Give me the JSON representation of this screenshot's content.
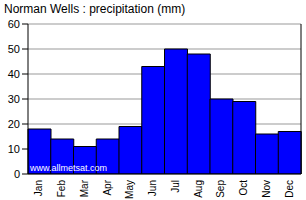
{
  "chart_data": {
    "type": "bar",
    "title": "Norman Wells : precipitation (mm)",
    "categories": [
      "Jan",
      "Feb",
      "Mar",
      "Apr",
      "May",
      "Jun",
      "Jul",
      "Aug",
      "Sep",
      "Oct",
      "Nov",
      "Dec"
    ],
    "values": [
      18,
      14,
      11,
      14,
      19,
      43,
      50,
      48,
      30,
      29,
      16,
      17
    ],
    "color": "#0000ff",
    "ylim": [
      0,
      60
    ],
    "yticks": [
      0,
      10,
      20,
      30,
      40,
      50,
      60
    ],
    "grid": true,
    "annotations": [
      "www.allmetsat.com"
    ]
  }
}
